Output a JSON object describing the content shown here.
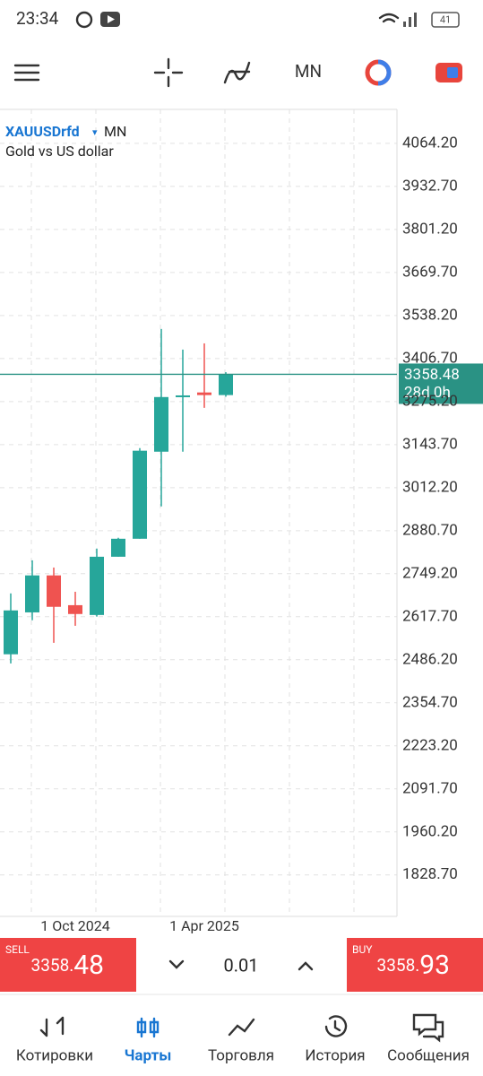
{
  "status_bar": {
    "time": "23:34",
    "battery": "41"
  },
  "chart_data": {
    "type": "candlestick",
    "symbol": "XAUUSDrfd",
    "timeframe": "MN",
    "description": "Gold vs US dollar",
    "categories": [
      null,
      null,
      null,
      "1 Oct 2024",
      null,
      null,
      null,
      null,
      null,
      "1 Apr 2025",
      null
    ],
    "open": [
      2503,
      2631,
      2744,
      2653,
      2623,
      2801,
      2856,
      3122,
      3289,
      3303,
      3295
    ],
    "high": [
      2689,
      2790,
      2768,
      2694,
      2826,
      2859,
      3133,
      3497,
      3434,
      3453,
      3365
    ],
    "low": [
      2475,
      2607,
      2538,
      2590,
      2618,
      2801,
      2856,
      2955,
      3122,
      3256,
      3290
    ],
    "close": [
      2637,
      2744,
      2648,
      2626,
      2801,
      2856,
      3125,
      3289,
      3294,
      3295,
      3358.48
    ],
    "up_color": "#26a69a",
    "down_color": "#ef5350",
    "ylim": [
      1702,
      4168
    ],
    "yticks": [
      {
        "value": 4064.2,
        "label": "4064.20"
      },
      {
        "value": 3932.7,
        "label": "3932.70"
      },
      {
        "value": 3801.2,
        "label": "3801.20"
      },
      {
        "value": 3669.7,
        "label": "3669.70"
      },
      {
        "value": 3538.2,
        "label": "3538.20"
      },
      {
        "value": 3406.7,
        "label": "3406.70"
      },
      {
        "value": 3275.2,
        "label": "3275.20"
      },
      {
        "value": 3143.7,
        "label": "3143.70"
      },
      {
        "value": 3012.2,
        "label": "3012.20"
      },
      {
        "value": 2880.7,
        "label": "2880.70"
      },
      {
        "value": 2749.2,
        "label": "2749.20"
      },
      {
        "value": 2617.7,
        "label": "2617.70"
      },
      {
        "value": 2486.2,
        "label": "2486.20"
      },
      {
        "value": 2354.7,
        "label": "2354.70"
      },
      {
        "value": 2223.2,
        "label": "2223.20"
      },
      {
        "value": 2091.7,
        "label": "2091.70"
      },
      {
        "value": 1960.2,
        "label": "1960.20"
      },
      {
        "value": 1828.7,
        "label": "1828.70"
      }
    ],
    "grid": true,
    "last_price": 3358.48,
    "countdown": "28d 0h",
    "last_price_color": "#2a9284"
  },
  "trade_panel": {
    "sell": {
      "label": "SELL",
      "price_main": "3358.",
      "price_small": "48"
    },
    "volume": "0.01",
    "buy": {
      "label": "BUY",
      "price_main": "3358.",
      "price_small": "93"
    }
  },
  "nav": {
    "items": [
      {
        "label": "Котировки"
      },
      {
        "label": "Чарты"
      },
      {
        "label": "Торговля"
      },
      {
        "label": "История"
      },
      {
        "label": "Сообщения"
      }
    ],
    "active": 1
  }
}
